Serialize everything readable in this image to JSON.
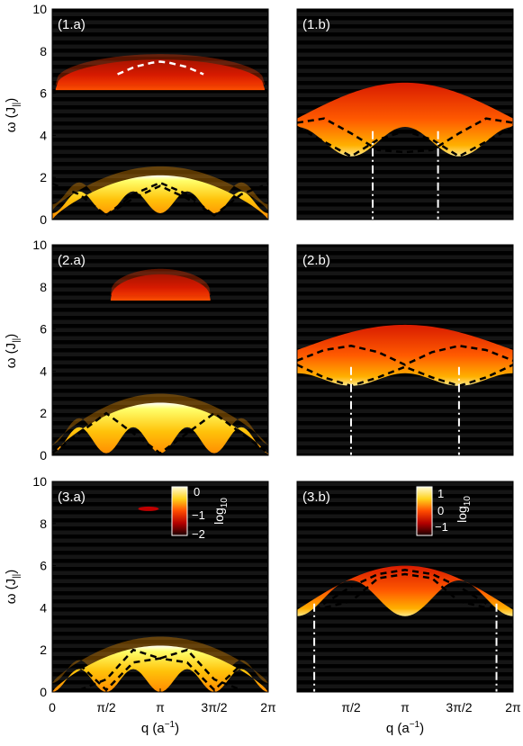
{
  "figure": {
    "ylabel_main": "ω (J",
    "ylabel_sub": "||",
    "ylabel_end": ")",
    "xlabel_main": "q (a",
    "xlabel_sup": "−1",
    "xlabel_end": ")"
  },
  "colorbars": [
    {
      "ticks": [
        "0",
        "−1",
        "−2"
      ],
      "label": "log",
      "label_sub": "10"
    },
    {
      "ticks": [
        "1",
        "0",
        "−1"
      ],
      "label": "log",
      "label_sub": "10"
    }
  ],
  "chart_data": [
    {
      "panel": "(1.a)",
      "type": "heatmap",
      "xlim": [
        0,
        6.2832
      ],
      "ylim": [
        0,
        10
      ],
      "xticks": [],
      "yticks": [
        "0",
        "2",
        "4",
        "6",
        "8",
        "10"
      ],
      "continua": [
        {
          "kind": "low",
          "peak": 2.1,
          "edge": 0.3,
          "ends": 0.0,
          "hot": true
        },
        {
          "kind": "flat-top",
          "top": 7.6,
          "bottom": 6.2,
          "xmin": 0.1,
          "xmax": 6.18,
          "hot": false
        }
      ],
      "dispersions": [
        {
          "style": "white-dash",
          "x": [
            1.9,
            2.4,
            2.9,
            3.14,
            3.4,
            3.9,
            4.4
          ],
          "y": [
            6.9,
            7.25,
            7.45,
            7.5,
            7.45,
            7.25,
            6.9
          ]
        },
        {
          "style": "black-dash",
          "x": [
            0,
            0.785,
            1.571,
            2.356,
            3.14,
            3.927,
            4.712,
            5.498,
            6.283
          ],
          "y": [
            1.7,
            1.2,
            0.2,
            1.0,
            1.6,
            1.0,
            0.2,
            1.2,
            1.7
          ]
        },
        {
          "style": "black-dash",
          "x": [
            1.571,
            2.356,
            3.14,
            3.927,
            4.712
          ],
          "y": [
            0.2,
            1.2,
            1.75,
            1.2,
            0.2
          ]
        }
      ]
    },
    {
      "panel": "(1.b)",
      "type": "heatmap",
      "xlim": [
        0,
        6.2832
      ],
      "ylim": [
        0,
        10
      ],
      "xticks": [],
      "yticks": [],
      "continua": [
        {
          "kind": "band",
          "top_center": 6.5,
          "top_edge": 4.8,
          "bottom_center": 3.0,
          "bottom_edge": 4.4
        }
      ],
      "dispersions": [
        {
          "style": "black-dash",
          "x": [
            0,
            0.785,
            1.571,
            2.356,
            3.14,
            3.927,
            4.712,
            5.498,
            6.283
          ],
          "y": [
            4.6,
            4.8,
            4.1,
            3.3,
            3.2,
            3.3,
            4.1,
            4.8,
            4.6
          ]
        },
        {
          "style": "black-dash",
          "x": [
            0,
            0.785,
            1.571,
            2.356,
            3.14,
            3.927,
            4.712,
            5.498,
            6.283
          ],
          "y": [
            4.4,
            3.7,
            3.0,
            3.8,
            4.2,
            3.8,
            3.0,
            3.7,
            4.4
          ]
        }
      ],
      "verticals": [
        2.2,
        4.1
      ]
    },
    {
      "panel": "(2.a)",
      "type": "heatmap",
      "xlim": [
        0,
        6.2832
      ],
      "ylim": [
        0,
        10
      ],
      "xticks": [],
      "yticks": [
        "0",
        "2",
        "4",
        "6",
        "8",
        "10"
      ],
      "continua": [
        {
          "kind": "low",
          "peak": 2.5,
          "edge": 0.1,
          "ends": 0.0,
          "hot": true
        },
        {
          "kind": "flat-top",
          "top": 8.6,
          "bottom": 7.4,
          "xmin": 1.7,
          "xmax": 4.6,
          "hot": false
        }
      ],
      "dispersions": [
        {
          "style": "black-dash",
          "x": [
            0,
            1.571,
            3.14,
            4.712,
            6.283
          ],
          "y": [
            0.1,
            2.0,
            0.1,
            2.0,
            0.1
          ]
        }
      ]
    },
    {
      "panel": "(2.b)",
      "type": "heatmap",
      "xlim": [
        0,
        6.2832
      ],
      "ylim": [
        0,
        10
      ],
      "xticks": [],
      "yticks": [],
      "continua": [
        {
          "kind": "band",
          "top_center": 6.2,
          "top_edge": 5.0,
          "bottom_center": 3.3,
          "bottom_edge": 3.9
        }
      ],
      "dispersions": [
        {
          "style": "black-dash",
          "x": [
            0,
            0.785,
            1.571,
            2.356,
            3.14,
            3.927,
            4.712,
            5.498,
            6.283
          ],
          "y": [
            4.5,
            5.0,
            5.2,
            4.9,
            4.3,
            4.9,
            5.2,
            5.0,
            4.5
          ]
        },
        {
          "style": "black-dash",
          "x": [
            0,
            0.785,
            1.571,
            2.356,
            3.14,
            3.927,
            4.712,
            5.498,
            6.283
          ],
          "y": [
            4.3,
            3.7,
            3.3,
            3.7,
            4.2,
            3.7,
            3.3,
            3.7,
            4.3
          ]
        }
      ],
      "verticals": [
        1.57,
        4.71
      ]
    },
    {
      "panel": "(3.a)",
      "type": "heatmap",
      "xlim": [
        0,
        6.2832
      ],
      "ylim": [
        0,
        10
      ],
      "xticks": [
        "0",
        "π/2",
        "π",
        "3π/2",
        "2π"
      ],
      "yticks": [
        "0",
        "2",
        "4",
        "6",
        "8",
        "10"
      ],
      "continua": [
        {
          "kind": "low",
          "peak": 2.2,
          "edge": 0.0,
          "ends": 0.0,
          "hot": true
        },
        {
          "kind": "spot",
          "y": 8.7,
          "xmin": 2.5,
          "xmax": 3.1
        }
      ],
      "dispersions": [
        {
          "style": "black-dash",
          "x": [
            0.8,
            1.571,
            2.356,
            3.14,
            3.927,
            4.712,
            5.5
          ],
          "y": [
            1.3,
            0.1,
            1.4,
            1.6,
            1.4,
            0.1,
            1.3
          ]
        },
        {
          "style": "black-dash",
          "x": [
            0.8,
            1.571,
            2.356,
            3.14,
            3.927,
            4.712,
            5.5
          ],
          "y": [
            0.1,
            0.6,
            2.0,
            1.6,
            2.0,
            0.6,
            0.1
          ]
        }
      ]
    },
    {
      "panel": "(3.b)",
      "type": "heatmap",
      "xlim": [
        0,
        6.2832
      ],
      "ylim": [
        0,
        10
      ],
      "xticks": [
        "π/2",
        "π",
        "3π/2",
        "2π"
      ],
      "yticks": [],
      "continua": [
        {
          "kind": "band",
          "top_center": 6.0,
          "top_edge": 3.9,
          "bottom_center": 5.3,
          "bottom_edge": 3.6
        }
      ],
      "dispersions": [
        {
          "style": "black-dash",
          "x": [
            0.5,
            1.571,
            2.356,
            3.14,
            3.927,
            4.712,
            5.8
          ],
          "y": [
            3.9,
            5.0,
            5.6,
            5.8,
            5.6,
            5.0,
            3.9
          ]
        },
        {
          "style": "black-dash",
          "x": [
            0.5,
            1.571,
            2.356,
            3.14,
            3.927,
            4.712,
            5.8
          ],
          "y": [
            3.9,
            4.3,
            5.4,
            5.6,
            5.4,
            4.3,
            3.9
          ]
        }
      ],
      "verticals": [
        0.5,
        5.8
      ]
    }
  ]
}
